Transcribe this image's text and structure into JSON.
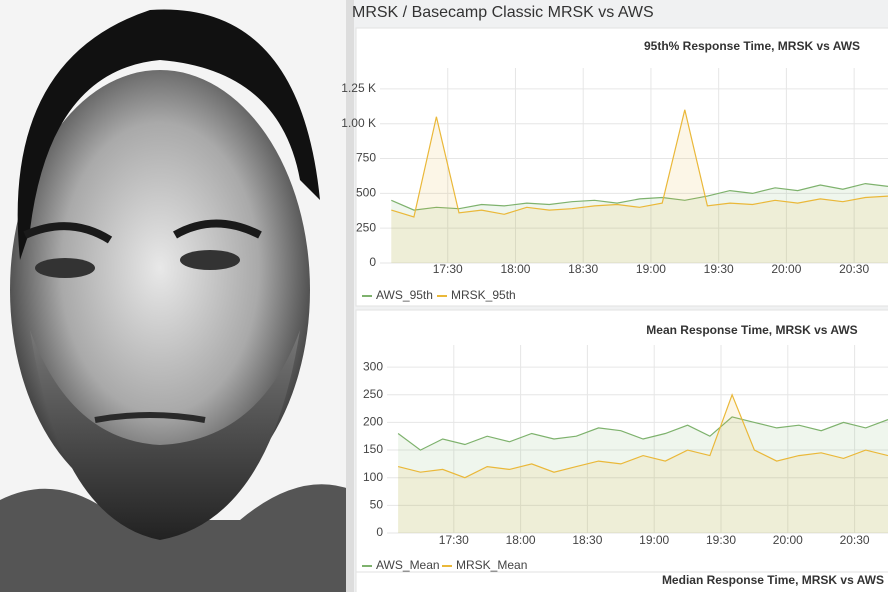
{
  "header": {
    "title": "MRSK / Basecamp Classic MRSK vs AWS"
  },
  "chart_data": [
    {
      "type": "line",
      "title": "95th% Response Time, MRSK vs AWS",
      "x": [
        "17:05",
        "17:15",
        "17:25",
        "17:35",
        "17:45",
        "17:55",
        "18:05",
        "18:15",
        "18:25",
        "18:35",
        "18:45",
        "18:55",
        "19:05",
        "19:15",
        "19:25",
        "19:35",
        "19:45",
        "19:55",
        "20:05",
        "20:15",
        "20:25",
        "20:35",
        "20:45"
      ],
      "xlim": [
        "17:00",
        "20:45"
      ],
      "xticks": [
        "17:30",
        "18:00",
        "18:30",
        "19:00",
        "19:30",
        "20:00",
        "20:30"
      ],
      "ylim": [
        0,
        1400
      ],
      "yticks": [
        0,
        250,
        500,
        750,
        {
          "value": 1000,
          "label": "1.00 K"
        },
        {
          "value": 1250,
          "label": "1.25 K"
        }
      ],
      "grid": true,
      "series": [
        {
          "name": "AWS_95th",
          "color": "#7eb26d",
          "values": [
            450,
            380,
            400,
            390,
            420,
            410,
            430,
            420,
            440,
            450,
            430,
            460,
            470,
            450,
            480,
            520,
            500,
            540,
            520,
            560,
            530,
            570,
            550
          ]
        },
        {
          "name": "MRSK_95th",
          "color": "#eab839",
          "values": [
            380,
            330,
            1050,
            360,
            380,
            350,
            400,
            380,
            390,
            410,
            420,
            400,
            430,
            1100,
            410,
            430,
            420,
            450,
            430,
            460,
            440,
            470,
            480
          ]
        }
      ]
    },
    {
      "type": "line",
      "title": "Mean Response Time, MRSK vs AWS",
      "x": [
        "17:05",
        "17:15",
        "17:25",
        "17:35",
        "17:45",
        "17:55",
        "18:05",
        "18:15",
        "18:25",
        "18:35",
        "18:45",
        "18:55",
        "19:05",
        "19:15",
        "19:25",
        "19:35",
        "19:45",
        "19:55",
        "20:05",
        "20:15",
        "20:25",
        "20:35",
        "20:45"
      ],
      "xlim": [
        "17:00",
        "20:45"
      ],
      "xticks": [
        "17:30",
        "18:00",
        "18:30",
        "19:00",
        "19:30",
        "20:00",
        "20:30"
      ],
      "ylim": [
        0,
        340
      ],
      "yticks": [
        0,
        50,
        100,
        150,
        200,
        250,
        300
      ],
      "grid": true,
      "series": [
        {
          "name": "AWS_Mean",
          "color": "#7eb26d",
          "values": [
            180,
            150,
            170,
            160,
            175,
            165,
            180,
            170,
            175,
            190,
            185,
            170,
            180,
            195,
            175,
            210,
            200,
            190,
            195,
            185,
            200,
            190,
            205
          ]
        },
        {
          "name": "MRSK_Mean",
          "color": "#eab839",
          "values": [
            120,
            110,
            115,
            100,
            120,
            115,
            125,
            110,
            120,
            130,
            125,
            140,
            130,
            150,
            140,
            250,
            150,
            130,
            140,
            145,
            135,
            150,
            140
          ]
        }
      ]
    },
    {
      "type": "line",
      "title": "Median Response Time, MRSK vs AWS"
    }
  ]
}
